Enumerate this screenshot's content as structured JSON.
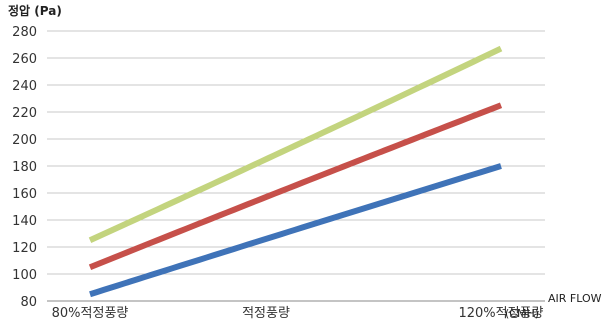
{
  "chart_data": {
    "type": "line",
    "title": "",
    "ylabel": "정압 (Pa)",
    "xlabel": "AIR FLOW",
    "x_unit": "(CMH)",
    "categories": [
      "80%적정풍량",
      "적정풍량",
      "120%적정풍량"
    ],
    "ylim": [
      80,
      280
    ],
    "yticks": [
      80,
      100,
      120,
      140,
      160,
      180,
      200,
      220,
      240,
      260,
      280
    ],
    "grid": true,
    "series": [
      {
        "color": "#c3d47e",
        "values": [
          125,
          185,
          267
        ]
      },
      {
        "color": "#c6504a",
        "values": [
          105,
          157,
          225
        ]
      },
      {
        "color": "#3f73b8",
        "values": [
          85,
          126,
          180
        ]
      }
    ]
  }
}
